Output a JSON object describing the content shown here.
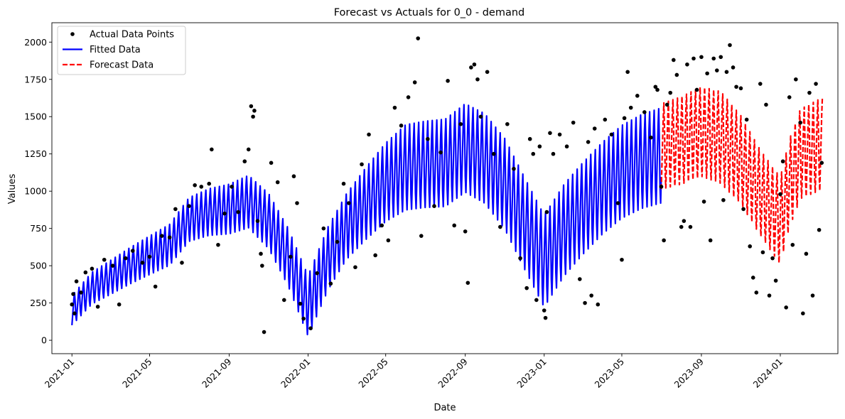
{
  "chart_data": {
    "type": "line",
    "title": "Forecast vs Actuals for 0_0 - demand",
    "xlabel": "Date",
    "ylabel": "Values",
    "xlim": [
      "2020-12-01",
      "2024-03-30"
    ],
    "ylim": [
      -90,
      2130
    ],
    "x_ticks": [
      "2021-01",
      "2021-05",
      "2021-09",
      "2022-01",
      "2022-05",
      "2022-09",
      "2023-01",
      "2023-05",
      "2023-09",
      "2024-01"
    ],
    "y_ticks": [
      0,
      250,
      500,
      750,
      1000,
      1250,
      1500,
      1750,
      2000
    ],
    "grid": false,
    "legend": {
      "position": "upper-left"
    },
    "series": [
      {
        "name": "Actual Data Points",
        "kind": "scatter",
        "color": "#000000",
        "points": [
          [
            "2021-01-01",
            240
          ],
          [
            "2021-01-03",
            310
          ],
          [
            "2021-01-05",
            180
          ],
          [
            "2021-01-08",
            395
          ],
          [
            "2021-01-15",
            320
          ],
          [
            "2021-01-22",
            455
          ],
          [
            "2021-02-01",
            480
          ],
          [
            "2021-02-10",
            225
          ],
          [
            "2021-02-20",
            540
          ],
          [
            "2021-03-05",
            500
          ],
          [
            "2021-03-15",
            240
          ],
          [
            "2021-03-25",
            550
          ],
          [
            "2021-04-05",
            600
          ],
          [
            "2021-04-20",
            520
          ],
          [
            "2021-05-01",
            560
          ],
          [
            "2021-05-10",
            360
          ],
          [
            "2021-05-20",
            700
          ],
          [
            "2021-06-01",
            690
          ],
          [
            "2021-06-10",
            880
          ],
          [
            "2021-06-20",
            520
          ],
          [
            "2021-07-01",
            900
          ],
          [
            "2021-07-10",
            1040
          ],
          [
            "2021-07-20",
            1030
          ],
          [
            "2021-08-01",
            1050
          ],
          [
            "2021-08-05",
            1280
          ],
          [
            "2021-08-15",
            640
          ],
          [
            "2021-08-25",
            850
          ],
          [
            "2021-09-05",
            1030
          ],
          [
            "2021-09-15",
            860
          ],
          [
            "2021-09-25",
            1200
          ],
          [
            "2021-10-01",
            1280
          ],
          [
            "2021-10-05",
            1570
          ],
          [
            "2021-10-08",
            1500
          ],
          [
            "2021-10-10",
            1540
          ],
          [
            "2021-10-15",
            800
          ],
          [
            "2021-10-20",
            580
          ],
          [
            "2021-10-22",
            500
          ],
          [
            "2021-10-25",
            55
          ],
          [
            "2021-11-05",
            1190
          ],
          [
            "2021-11-15",
            1060
          ],
          [
            "2021-11-25",
            270
          ],
          [
            "2021-12-05",
            560
          ],
          [
            "2021-12-10",
            1100
          ],
          [
            "2021-12-15",
            920
          ],
          [
            "2021-12-20",
            245
          ],
          [
            "2021-12-25",
            145
          ],
          [
            "2022-01-05",
            80
          ],
          [
            "2022-01-15",
            450
          ],
          [
            "2022-01-25",
            750
          ],
          [
            "2022-02-05",
            380
          ],
          [
            "2022-02-15",
            660
          ],
          [
            "2022-02-25",
            1050
          ],
          [
            "2022-03-05",
            920
          ],
          [
            "2022-03-15",
            490
          ],
          [
            "2022-03-25",
            1180
          ],
          [
            "2022-04-05",
            1380
          ],
          [
            "2022-04-15",
            570
          ],
          [
            "2022-04-25",
            770
          ],
          [
            "2022-05-05",
            670
          ],
          [
            "2022-05-15",
            1560
          ],
          [
            "2022-05-25",
            1440
          ],
          [
            "2022-06-05",
            1630
          ],
          [
            "2022-06-15",
            1730
          ],
          [
            "2022-06-20",
            2025
          ],
          [
            "2022-06-25",
            700
          ],
          [
            "2022-07-05",
            1350
          ],
          [
            "2022-07-15",
            900
          ],
          [
            "2022-07-25",
            1260
          ],
          [
            "2022-08-05",
            1740
          ],
          [
            "2022-08-15",
            770
          ],
          [
            "2022-08-25",
            1450
          ],
          [
            "2022-09-01",
            730
          ],
          [
            "2022-09-05",
            385
          ],
          [
            "2022-09-10",
            1830
          ],
          [
            "2022-09-15",
            1850
          ],
          [
            "2022-09-20",
            1750
          ],
          [
            "2022-09-25",
            1500
          ],
          [
            "2022-10-05",
            1800
          ],
          [
            "2022-10-15",
            1250
          ],
          [
            "2022-10-25",
            760
          ],
          [
            "2022-11-05",
            1450
          ],
          [
            "2022-11-15",
            1150
          ],
          [
            "2022-11-25",
            550
          ],
          [
            "2022-12-05",
            350
          ],
          [
            "2022-12-10",
            1350
          ],
          [
            "2022-12-15",
            1250
          ],
          [
            "2022-12-20",
            270
          ],
          [
            "2022-12-25",
            1300
          ],
          [
            "2023-01-01",
            200
          ],
          [
            "2023-01-03",
            150
          ],
          [
            "2023-01-05",
            860
          ],
          [
            "2023-01-10",
            1390
          ],
          [
            "2023-01-15",
            1250
          ],
          [
            "2023-01-25",
            1380
          ],
          [
            "2023-02-05",
            1300
          ],
          [
            "2023-02-15",
            1460
          ],
          [
            "2023-02-25",
            410
          ],
          [
            "2023-03-05",
            250
          ],
          [
            "2023-03-10",
            1330
          ],
          [
            "2023-03-15",
            300
          ],
          [
            "2023-03-20",
            1420
          ],
          [
            "2023-03-25",
            240
          ],
          [
            "2023-04-05",
            1480
          ],
          [
            "2023-04-15",
            1380
          ],
          [
            "2023-04-25",
            920
          ],
          [
            "2023-05-01",
            540
          ],
          [
            "2023-05-05",
            1490
          ],
          [
            "2023-05-10",
            1800
          ],
          [
            "2023-05-15",
            1560
          ],
          [
            "2023-05-25",
            1640
          ],
          [
            "2023-06-05",
            1530
          ],
          [
            "2023-06-15",
            1360
          ],
          [
            "2023-06-22",
            1700
          ],
          [
            "2023-06-25",
            1680
          ],
          [
            "2023-07-01",
            1030
          ],
          [
            "2023-07-05",
            670
          ],
          [
            "2023-07-10",
            1580
          ],
          [
            "2023-07-15",
            1660
          ],
          [
            "2023-07-20",
            1880
          ],
          [
            "2023-07-25",
            1780
          ],
          [
            "2023-08-01",
            760
          ],
          [
            "2023-08-05",
            800
          ],
          [
            "2023-08-10",
            1850
          ],
          [
            "2023-08-15",
            760
          ],
          [
            "2023-08-20",
            1890
          ],
          [
            "2023-08-25",
            1680
          ],
          [
            "2023-09-01",
            1900
          ],
          [
            "2023-09-05",
            930
          ],
          [
            "2023-09-10",
            1790
          ],
          [
            "2023-09-15",
            670
          ],
          [
            "2023-09-20",
            1890
          ],
          [
            "2023-09-25",
            1810
          ],
          [
            "2023-10-01",
            1900
          ],
          [
            "2023-10-05",
            940
          ],
          [
            "2023-10-10",
            1800
          ],
          [
            "2023-10-15",
            1980
          ],
          [
            "2023-10-20",
            1830
          ],
          [
            "2023-10-25",
            1700
          ],
          [
            "2023-11-01",
            1690
          ],
          [
            "2023-11-05",
            880
          ],
          [
            "2023-11-10",
            1480
          ],
          [
            "2023-11-15",
            630
          ],
          [
            "2023-11-20",
            420
          ],
          [
            "2023-11-25",
            320
          ],
          [
            "2023-12-01",
            1720
          ],
          [
            "2023-12-05",
            590
          ],
          [
            "2023-12-10",
            1580
          ],
          [
            "2023-12-15",
            300
          ],
          [
            "2023-12-20",
            550
          ],
          [
            "2023-12-25",
            400
          ],
          [
            "2024-01-01",
            980
          ],
          [
            "2024-01-05",
            1200
          ],
          [
            "2024-01-10",
            220
          ],
          [
            "2024-01-15",
            1630
          ],
          [
            "2024-01-20",
            640
          ],
          [
            "2024-01-25",
            1750
          ],
          [
            "2024-02-01",
            1460
          ],
          [
            "2024-02-05",
            180
          ],
          [
            "2024-02-10",
            580
          ],
          [
            "2024-02-15",
            1660
          ],
          [
            "2024-02-20",
            300
          ],
          [
            "2024-02-25",
            1720
          ],
          [
            "2024-03-01",
            740
          ],
          [
            "2024-03-05",
            1190
          ]
        ]
      },
      {
        "name": "Fitted Data",
        "kind": "line",
        "color": "#0000ff",
        "style": "solid",
        "start": "2021-01-01",
        "end": "2023-07-01",
        "trend": [
          [
            "2021-01-01",
            200
          ],
          [
            "2021-02-01",
            350
          ],
          [
            "2021-03-01",
            420
          ],
          [
            "2021-04-01",
            500
          ],
          [
            "2021-05-01",
            570
          ],
          [
            "2021-06-01",
            640
          ],
          [
            "2021-07-01",
            810
          ],
          [
            "2021-08-01",
            860
          ],
          [
            "2021-09-01",
            880
          ],
          [
            "2021-10-01",
            930
          ],
          [
            "2021-11-01",
            800
          ],
          [
            "2021-12-01",
            560
          ],
          [
            "2022-01-01",
            230
          ],
          [
            "2022-02-01",
            550
          ],
          [
            "2022-03-01",
            760
          ],
          [
            "2022-04-01",
            920
          ],
          [
            "2022-05-01",
            1060
          ],
          [
            "2022-06-01",
            1160
          ],
          [
            "2022-07-01",
            1180
          ],
          [
            "2022-08-01",
            1190
          ],
          [
            "2022-09-01",
            1290
          ],
          [
            "2022-10-01",
            1220
          ],
          [
            "2022-11-01",
            1050
          ],
          [
            "2022-12-01",
            790
          ],
          [
            "2023-01-01",
            530
          ],
          [
            "2023-02-01",
            740
          ],
          [
            "2023-03-01",
            880
          ],
          [
            "2023-04-01",
            1020
          ],
          [
            "2023-05-01",
            1130
          ],
          [
            "2023-06-01",
            1200
          ],
          [
            "2023-07-01",
            1240
          ]
        ],
        "weekly_amplitude": [
          [
            "2021-01-01",
            180
          ],
          [
            "2021-06-01",
            250
          ],
          [
            "2021-10-01",
            320
          ],
          [
            "2022-03-01",
            400
          ],
          [
            "2022-06-01",
            520
          ],
          [
            "2022-12-01",
            560
          ],
          [
            "2023-04-01",
            560
          ],
          [
            "2023-07-01",
            580
          ]
        ]
      },
      {
        "name": "Forecast Data",
        "kind": "line",
        "color": "#ff0000",
        "style": "dashed",
        "start": "2023-07-01",
        "end": "2024-03-06",
        "trend": [
          [
            "2023-07-01",
            1300
          ],
          [
            "2023-08-01",
            1340
          ],
          [
            "2023-09-01",
            1400
          ],
          [
            "2023-10-01",
            1360
          ],
          [
            "2023-11-01",
            1210
          ],
          [
            "2023-12-01",
            990
          ],
          [
            "2024-01-01",
            800
          ],
          [
            "2024-01-15",
            1050
          ],
          [
            "2024-02-01",
            1250
          ],
          [
            "2024-03-06",
            1320
          ]
        ],
        "weekly_amplitude": [
          [
            "2023-07-01",
            520
          ],
          [
            "2023-10-01",
            560
          ],
          [
            "2023-12-01",
            520
          ],
          [
            "2024-03-06",
            560
          ]
        ]
      }
    ]
  }
}
